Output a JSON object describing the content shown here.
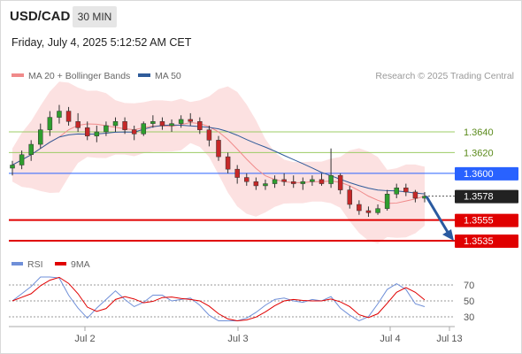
{
  "header": {
    "symbol": "USD/CAD",
    "timeframe": "30 MIN",
    "datetime": "Friday, July 4, 2025 5:12:52 AM CET"
  },
  "legend": [
    {
      "label": "MA 20 + Bollinger Bands",
      "color": "#f08a8a"
    },
    {
      "label": "MA 50",
      "color": "#2f5b9a"
    }
  ],
  "brand": "Research © 2025 Trading Central",
  "rsi_legend": [
    {
      "label": "RSI",
      "color": "#6f8fd8"
    },
    {
      "label": "9MA",
      "color": "#e00000"
    }
  ],
  "chart_data": [
    {
      "type": "candlestick",
      "series": [
        {
          "name": "MA 20",
          "color": "#f08a8a"
        },
        {
          "name": "MA 50",
          "color": "#2f5b9a"
        }
      ],
      "ohlc_approx": [
        [
          1.3605,
          1.3612,
          1.3598,
          1.3608
        ],
        [
          1.3608,
          1.3622,
          1.3604,
          1.3618
        ],
        [
          1.3618,
          1.3632,
          1.3612,
          1.3628
        ],
        [
          1.3628,
          1.3648,
          1.3624,
          1.3642
        ],
        [
          1.3642,
          1.366,
          1.3636,
          1.3654
        ],
        [
          1.3654,
          1.3666,
          1.3648,
          1.366
        ],
        [
          1.366,
          1.3664,
          1.3646,
          1.365
        ],
        [
          1.365,
          1.3658,
          1.364,
          1.3644
        ],
        [
          1.3644,
          1.365,
          1.3632,
          1.3636
        ],
        [
          1.3636,
          1.3646,
          1.363,
          1.364
        ],
        [
          1.364,
          1.365,
          1.3636,
          1.3646
        ],
        [
          1.3646,
          1.3654,
          1.364,
          1.365
        ],
        [
          1.365,
          1.3654,
          1.3638,
          1.3642
        ],
        [
          1.3642,
          1.3646,
          1.3632,
          1.3638
        ],
        [
          1.3638,
          1.365,
          1.3636,
          1.3648
        ],
        [
          1.3648,
          1.3656,
          1.3644,
          1.365
        ],
        [
          1.365,
          1.3654,
          1.3642,
          1.3646
        ],
        [
          1.3646,
          1.3652,
          1.364,
          1.3648
        ],
        [
          1.3648,
          1.3656,
          1.3644,
          1.3652
        ],
        [
          1.3652,
          1.3658,
          1.3646,
          1.365
        ],
        [
          1.365,
          1.3654,
          1.3638,
          1.3642
        ],
        [
          1.3642,
          1.3646,
          1.3626,
          1.3632
        ],
        [
          1.3632,
          1.3636,
          1.3612,
          1.3616
        ],
        [
          1.3616,
          1.362,
          1.36,
          1.3604
        ],
        [
          1.3604,
          1.3608,
          1.359,
          1.3596
        ],
        [
          1.3596,
          1.36,
          1.3588,
          1.3592
        ],
        [
          1.3592,
          1.3596,
          1.3584,
          1.3588
        ],
        [
          1.3588,
          1.3594,
          1.3584,
          1.359
        ],
        [
          1.359,
          1.3598,
          1.3586,
          1.3594
        ],
        [
          1.3594,
          1.36,
          1.3588,
          1.3592
        ],
        [
          1.3592,
          1.3598,
          1.3586,
          1.359
        ],
        [
          1.359,
          1.3596,
          1.3584,
          1.3592
        ],
        [
          1.3592,
          1.3598,
          1.3588,
          1.3594
        ],
        [
          1.3594,
          1.36,
          1.3588,
          1.359
        ],
        [
          1.359,
          1.3624,
          1.3586,
          1.3598
        ],
        [
          1.3598,
          1.36,
          1.358,
          1.3584
        ],
        [
          1.3584,
          1.3588,
          1.3566,
          1.357
        ],
        [
          1.357,
          1.3574,
          1.356,
          1.3564
        ],
        [
          1.3564,
          1.3568,
          1.3558,
          1.3562
        ],
        [
          1.3562,
          1.357,
          1.356,
          1.3566
        ],
        [
          1.3566,
          1.3584,
          1.3564,
          1.358
        ],
        [
          1.358,
          1.359,
          1.3576,
          1.3586
        ],
        [
          1.3586,
          1.359,
          1.3578,
          1.3582
        ],
        [
          1.3582,
          1.3584,
          1.3572,
          1.3576
        ],
        [
          1.3576,
          1.3582,
          1.3572,
          1.3578
        ]
      ]
    },
    {
      "type": "line",
      "series": [
        {
          "name": "RSI",
          "color": "#6f8fd8"
        },
        {
          "name": "9MA",
          "color": "#e00000"
        }
      ]
    }
  ],
  "price_levels": [
    {
      "label": "1.3640",
      "value": 1.364,
      "kind": "ma",
      "color": "#9ccc65"
    },
    {
      "label": "1.3620",
      "value": 1.362,
      "kind": "ma",
      "color": "#9ccc65"
    },
    {
      "label": "1.3600",
      "value": 1.36,
      "kind": "resistance",
      "color": "#2962ff"
    },
    {
      "label": "1.3578",
      "value": 1.3578,
      "kind": "last",
      "color": "#222222"
    },
    {
      "label": "1.3555",
      "value": 1.3555,
      "kind": "support",
      "color": "#e00000"
    },
    {
      "label": "1.3535",
      "value": 1.3535,
      "kind": "support",
      "color": "#e00000"
    }
  ],
  "rsi_ticks": [
    "70",
    "50",
    "30"
  ],
  "x_ticks": [
    "Jul 2",
    "Jul 3",
    "Jul 4",
    "Jul 13"
  ]
}
